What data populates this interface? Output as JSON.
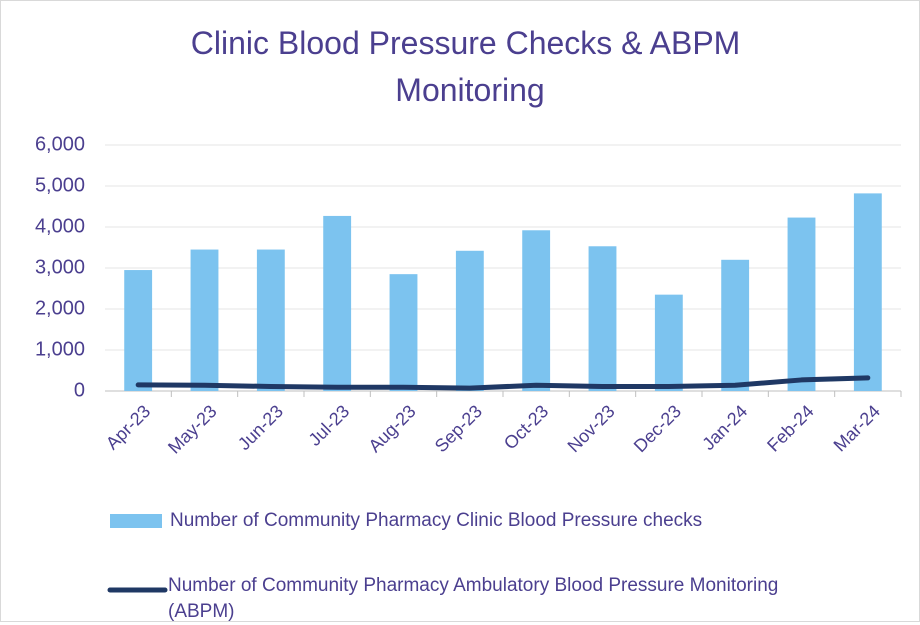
{
  "chart_data": {
    "type": "combo",
    "title": "Clinic Blood Pressure Checks & ABPM Monitoring",
    "categories": [
      "Apr-23",
      "May-23",
      "Jun-23",
      "Jul-23",
      "Aug-23",
      "Sep-23",
      "Oct-23",
      "Nov-23",
      "Dec-23",
      "Jan-24",
      "Feb-24",
      "Mar-24"
    ],
    "series": [
      {
        "name": "Number of Community Pharmacy Clinic Blood Pressure checks",
        "type": "bar",
        "color": "#7cc3ef",
        "values": [
          2950,
          3450,
          3450,
          4270,
          2850,
          3420,
          3920,
          3530,
          2350,
          3200,
          4230,
          4820
        ]
      },
      {
        "name": "Number of Community Pharmacy Ambulatory Blood Pressure Monitoring (ABPM)",
        "type": "line",
        "color": "#1f3864",
        "values": [
          150,
          140,
          110,
          90,
          90,
          70,
          140,
          110,
          110,
          140,
          270,
          320
        ]
      }
    ],
    "ylim": [
      0,
      6000
    ],
    "yticks": [
      0,
      {
        "value": 1000,
        "label": "1,000"
      },
      {
        "value": 2000,
        "label": "2,000"
      },
      {
        "value": 3000,
        "label": "3,000"
      },
      {
        "value": 4000,
        "label": "4,000"
      },
      {
        "value": 5000,
        "label": "5,000"
      },
      {
        "value": 6000,
        "label": "6,000"
      }
    ],
    "grid": true,
    "legend": "bottom"
  }
}
